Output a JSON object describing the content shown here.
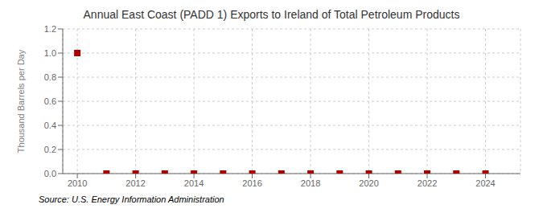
{
  "chart_data": {
    "type": "scatter",
    "title": "Annual East Coast (PADD 1) Exports to Ireland of Total Petroleum Products",
    "ylabel": "Thousand Barrels per Day",
    "source": "Source: U.S. Energy Information Administration",
    "x": [
      2010,
      2011,
      2012,
      2013,
      2014,
      2015,
      2016,
      2017,
      2018,
      2019,
      2020,
      2021,
      2022,
      2023,
      2024
    ],
    "values": [
      1.0,
      0.0,
      0.0,
      0.0,
      0.0,
      0.0,
      0.0,
      0.0,
      0.0,
      0.0,
      0.0,
      0.0,
      0.0,
      0.0,
      0.0
    ],
    "color": "#AA0000",
    "marker": "square",
    "xlim": [
      2009.5,
      2025.2
    ],
    "ylim": [
      0.0,
      1.2
    ],
    "xticks": [
      2010,
      2012,
      2014,
      2016,
      2018,
      2020,
      2022,
      2024
    ],
    "yticks": [
      {
        "value": 0,
        "label": "0.0"
      },
      0.2,
      0.4,
      0.6,
      0.8,
      {
        "value": 1,
        "label": "1.0"
      },
      1.2
    ],
    "grid": true
  }
}
